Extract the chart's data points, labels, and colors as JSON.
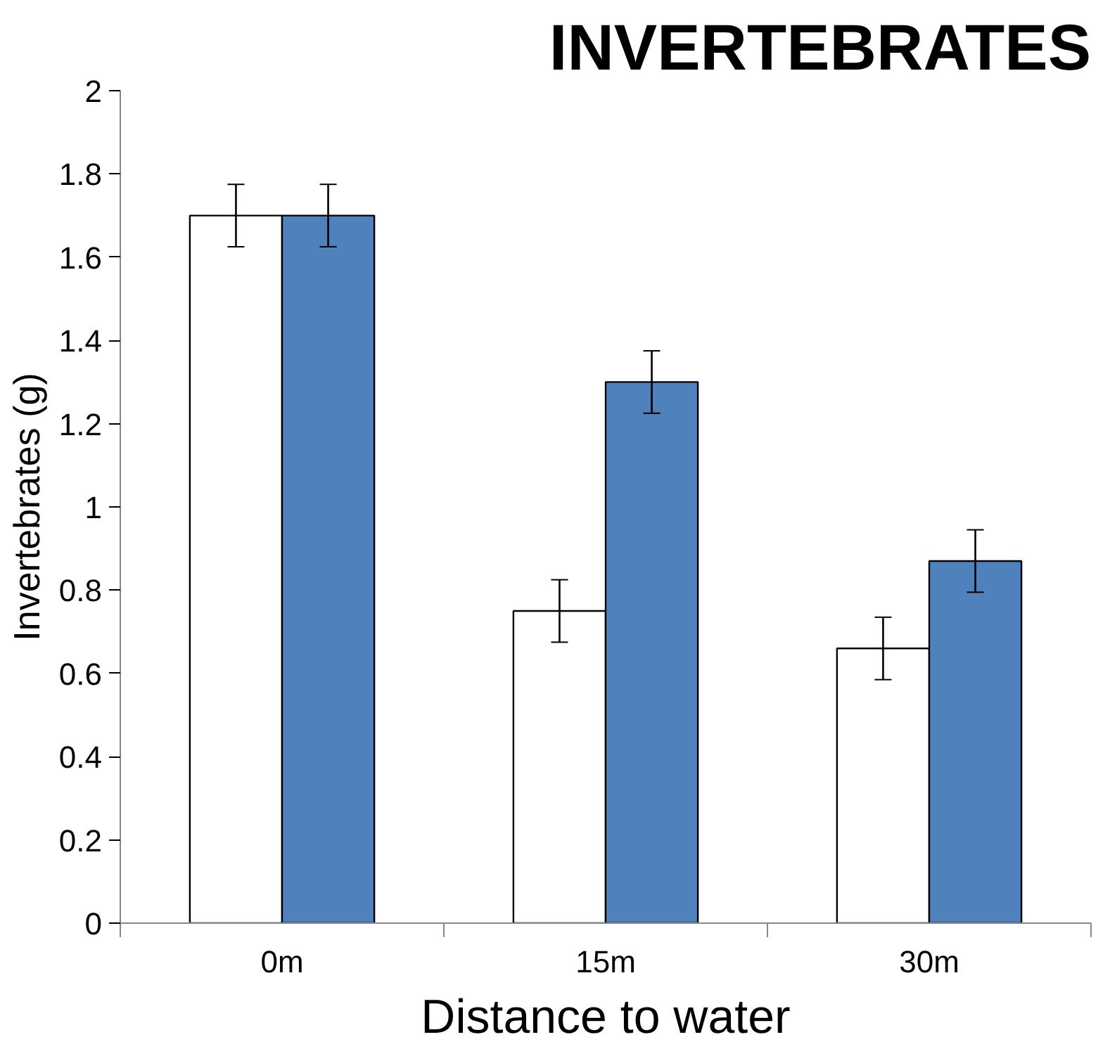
{
  "chart_data": {
    "type": "bar",
    "title": "INVERTEBRATES",
    "xlabel": "Distance to water",
    "ylabel": "Invertebrates (g)",
    "categories": [
      "0m",
      "15m",
      "30m"
    ],
    "series": [
      {
        "color": "#ffffff",
        "values": [
          1.7,
          0.75,
          0.66
        ],
        "errors": [
          0.075,
          0.075,
          0.075
        ]
      },
      {
        "color": "#4f81bd",
        "values": [
          1.7,
          1.3,
          0.87
        ],
        "errors": [
          0.075,
          0.075,
          0.075
        ]
      }
    ],
    "ylim": [
      0,
      2
    ],
    "yticks": [
      0,
      0.2,
      0.4,
      0.6,
      0.8,
      1,
      1.2,
      1.4,
      1.6,
      1.8,
      2
    ],
    "grid": false
  }
}
